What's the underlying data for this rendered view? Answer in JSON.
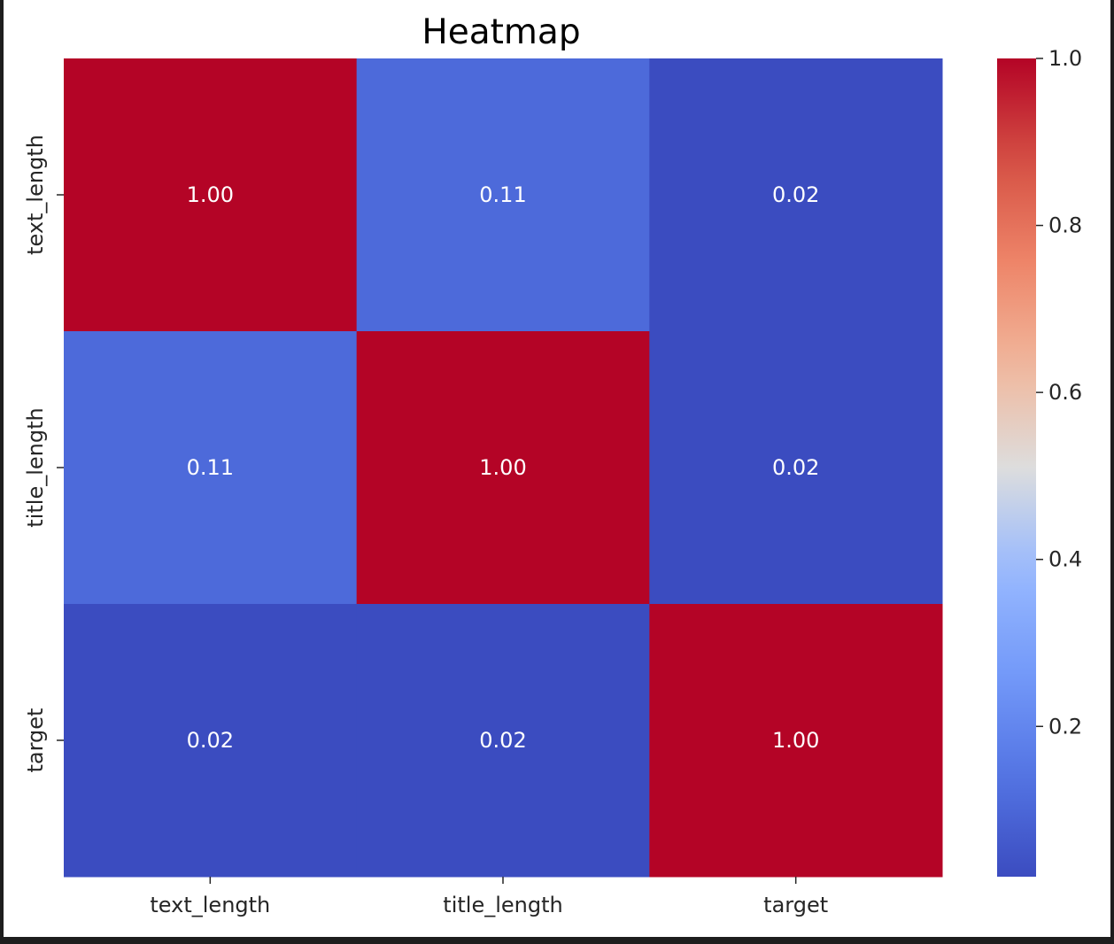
{
  "chart_data": {
    "type": "heatmap",
    "title": "Heatmap",
    "xlabel": "",
    "ylabel": "",
    "x_categories": [
      "text_length",
      "title_length",
      "target"
    ],
    "y_categories": [
      "text_length",
      "title_length",
      "target"
    ],
    "values": [
      [
        1.0,
        0.11,
        0.02
      ],
      [
        0.11,
        1.0,
        0.02
      ],
      [
        0.02,
        0.02,
        1.0
      ]
    ],
    "annotations_format": "0.00",
    "colormap": "coolwarm",
    "colorbar": {
      "range": [
        0.02,
        1.0
      ],
      "ticks": [
        0.2,
        0.4,
        0.6,
        0.8,
        1.0
      ],
      "tick_labels": [
        "0.2",
        "0.4",
        "0.6",
        "0.8",
        "1.0"
      ],
      "placement": "right"
    },
    "colors": {
      "high": "#b40426",
      "low": "#3b4cc0",
      "mid": "#dddddd",
      "annotation_text": "#ffffff"
    }
  }
}
